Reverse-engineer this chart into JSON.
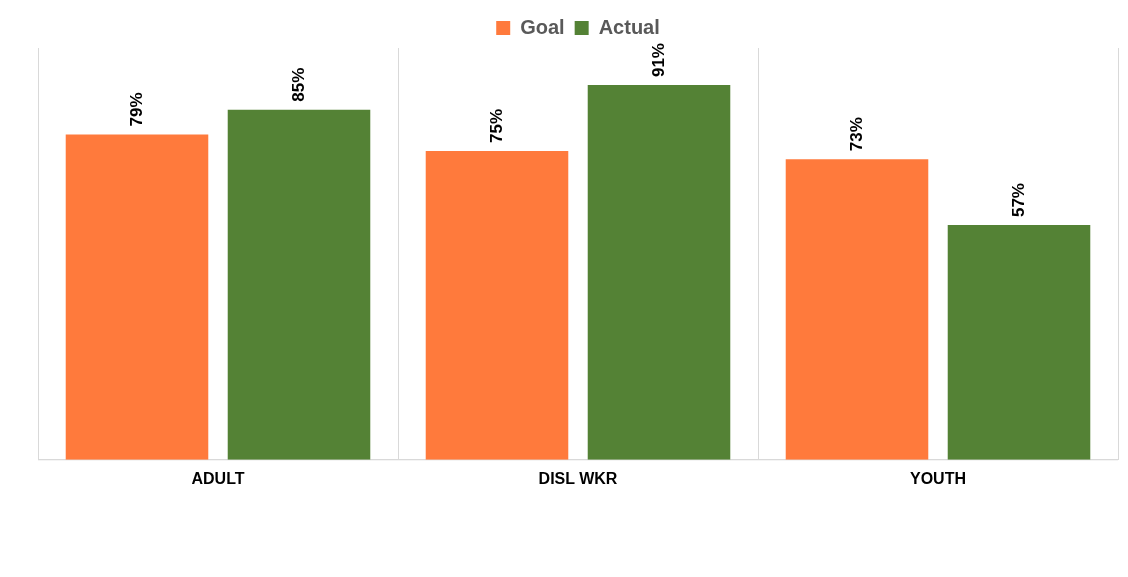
{
  "chart_data": {
    "type": "bar",
    "categories": [
      "ADULT",
      "DISL WKR",
      "YOUTH"
    ],
    "series": [
      {
        "name": "Goal",
        "color": "#ff7a3c",
        "values": [
          79,
          75,
          73
        ],
        "value_labels": [
          "79%",
          "75%",
          "73%"
        ]
      },
      {
        "name": "Actual",
        "color": "#548235",
        "values": [
          85,
          91,
          57
        ],
        "value_labels": [
          "85%",
          "91%",
          "57%"
        ]
      }
    ],
    "grid": "x",
    "legend": "top"
  }
}
